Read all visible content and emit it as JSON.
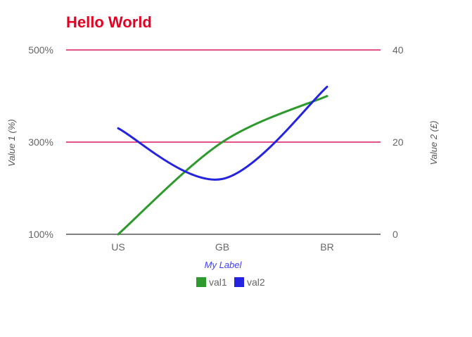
{
  "chart_data": {
    "type": "line",
    "title": "Hello World",
    "xlabel": "My Label",
    "ylabel": "Value 1 (%)",
    "ylabel_right": "Value 2 (£)",
    "categories": [
      "US",
      "GB",
      "BR"
    ],
    "series": [
      {
        "name": "val1",
        "axis": "left",
        "values": [
          100,
          300,
          400
        ]
      },
      {
        "name": "val2",
        "axis": "right",
        "values": [
          23,
          12,
          32
        ]
      }
    ],
    "ylim": [
      100,
      500
    ],
    "ylim_right": [
      0,
      40
    ],
    "yticks_left": [
      "100%",
      "300%",
      "500%"
    ],
    "yticks_right": [
      "0",
      "20",
      "40"
    ],
    "grid": true,
    "curve": "smooth",
    "legend_position": "bottom",
    "colors": {
      "title": "#e30022",
      "gridline": "#d81b60",
      "baseline": "#333333",
      "tick_text": "#666666",
      "axis_title": "#555555",
      "xlabel": "#3f3fff",
      "val1": "#2e9a2e",
      "val2": "#2424e0"
    }
  }
}
